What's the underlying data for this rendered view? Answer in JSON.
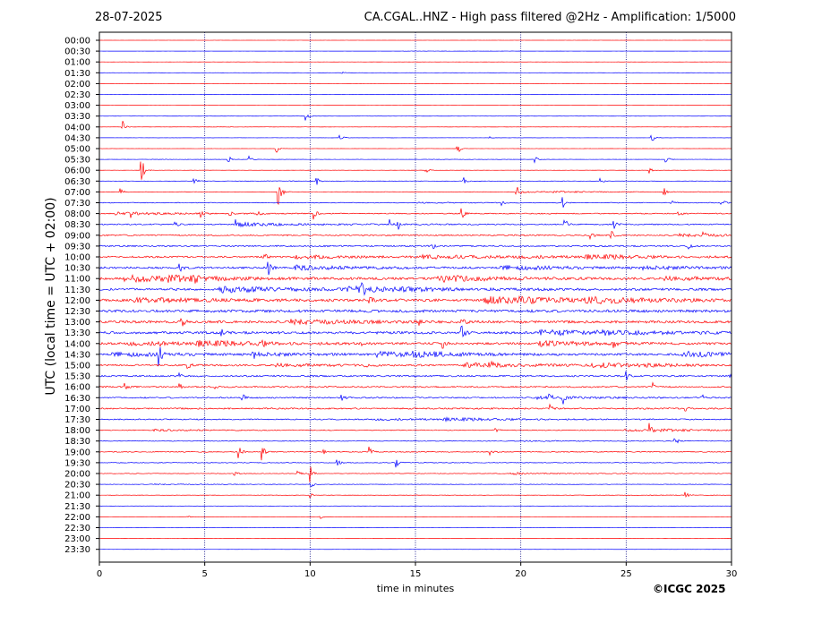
{
  "header": {
    "date": "28-07-2025",
    "title": "CA.CGAL..HNZ - High pass filtered @2Hz - Amplification: 1/5000"
  },
  "footer": {
    "copyright": "©ICGC 2025"
  },
  "colors": {
    "trace_a": "#ff0000",
    "trace_b": "#0000ff",
    "axis": "#000000",
    "grid": "#000080"
  },
  "chart_data": {
    "type": "line",
    "title": "CA.CGAL..HNZ - High pass filtered @2Hz - Amplification: 1/5000",
    "xlabel": "time in minutes",
    "ylabel": "UTC (local time = UTC + 02:00)",
    "xlim": [
      0,
      30
    ],
    "x_ticks": [
      0,
      5,
      10,
      15,
      20,
      25,
      30
    ],
    "y_tick_labels": [
      "00:00",
      "00:30",
      "01:00",
      "01:30",
      "02:00",
      "02:30",
      "03:00",
      "03:30",
      "04:00",
      "04:30",
      "05:00",
      "05:30",
      "06:00",
      "06:30",
      "07:00",
      "07:30",
      "08:00",
      "08:30",
      "09:00",
      "09:30",
      "10:00",
      "10:30",
      "11:00",
      "11:30",
      "12:00",
      "12:30",
      "13:00",
      "13:30",
      "14:00",
      "14:30",
      "15:00",
      "15:30",
      "16:00",
      "16:30",
      "17:00",
      "17:30",
      "18:00",
      "18:30",
      "19:00",
      "19:30",
      "20:00",
      "20:30",
      "21:00",
      "21:30",
      "22:00",
      "22:30",
      "23:00",
      "23:30"
    ],
    "grid": "vertical dotted at 5-minute intervals",
    "trace_colors_alternate": [
      "red",
      "blue"
    ],
    "noise_level": [
      0.05,
      0.05,
      0.05,
      0.06,
      0.05,
      0.06,
      0.05,
      0.06,
      0.06,
      0.07,
      0.08,
      0.09,
      0.1,
      0.14,
      0.22,
      0.3,
      0.45,
      0.55,
      0.6,
      0.65,
      0.75,
      0.85,
      1.0,
      1.05,
      1.15,
      1.2,
      1.1,
      1.1,
      0.95,
      0.85,
      0.8,
      0.7,
      0.65,
      0.6,
      0.65,
      0.5,
      0.35,
      0.3,
      0.4,
      0.3,
      0.25,
      0.2,
      0.15,
      0.1,
      0.08,
      0.07,
      0.06,
      0.05
    ],
    "events": [
      {
        "row": 3,
        "minute": 11.5,
        "amp": 2
      },
      {
        "row": 7,
        "minute": 9.8,
        "amp": 5
      },
      {
        "row": 8,
        "minute": 1.1,
        "amp": 7
      },
      {
        "row": 9,
        "minute": 11.4,
        "amp": 6
      },
      {
        "row": 9,
        "minute": 18.5,
        "amp": 2
      },
      {
        "row": 9,
        "minute": 26.2,
        "amp": 6
      },
      {
        "row": 10,
        "minute": 8.4,
        "amp": 5
      },
      {
        "row": 10,
        "minute": 17.0,
        "amp": 7
      },
      {
        "row": 11,
        "minute": 6.1,
        "amp": 6
      },
      {
        "row": 11,
        "minute": 7.1,
        "amp": 4
      },
      {
        "row": 11,
        "minute": 20.7,
        "amp": 4
      },
      {
        "row": 11,
        "minute": 26.9,
        "amp": 6
      },
      {
        "row": 12,
        "minute": 2.0,
        "amp": 18
      },
      {
        "row": 12,
        "minute": 15.5,
        "amp": 5
      },
      {
        "row": 12,
        "minute": 26.1,
        "amp": 4
      },
      {
        "row": 13,
        "minute": 4.5,
        "amp": 7
      },
      {
        "row": 13,
        "minute": 10.3,
        "amp": 5
      },
      {
        "row": 13,
        "minute": 17.3,
        "amp": 5
      },
      {
        "row": 13,
        "minute": 23.8,
        "amp": 4
      },
      {
        "row": 14,
        "minute": 1.0,
        "amp": 5
      },
      {
        "row": 14,
        "minute": 8.5,
        "amp": 20
      },
      {
        "row": 14,
        "minute": 19.8,
        "amp": 7
      },
      {
        "row": 14,
        "minute": 26.8,
        "amp": 5
      },
      {
        "row": 15,
        "minute": 19.1,
        "amp": 5
      },
      {
        "row": 15,
        "minute": 22.0,
        "amp": 6
      },
      {
        "row": 15,
        "minute": 27.1,
        "amp": 5
      },
      {
        "row": 15,
        "minute": 29.5,
        "amp": 8
      },
      {
        "row": 16,
        "minute": 1.5,
        "amp": 4
      },
      {
        "row": 16,
        "minute": 4.8,
        "amp": 4
      },
      {
        "row": 16,
        "minute": 6.2,
        "amp": 4
      },
      {
        "row": 16,
        "minute": 7.5,
        "amp": 5
      },
      {
        "row": 16,
        "minute": 10.2,
        "amp": 6
      },
      {
        "row": 16,
        "minute": 17.2,
        "amp": 7
      },
      {
        "row": 16,
        "minute": 27.5,
        "amp": 4
      },
      {
        "row": 17,
        "minute": 3.6,
        "amp": 4
      },
      {
        "row": 17,
        "minute": 6.5,
        "amp": 6
      },
      {
        "row": 17,
        "minute": 13.8,
        "amp": 5
      },
      {
        "row": 17,
        "minute": 14.2,
        "amp": 5
      },
      {
        "row": 17,
        "minute": 22.1,
        "amp": 6
      },
      {
        "row": 17,
        "minute": 24.4,
        "amp": 6
      },
      {
        "row": 18,
        "minute": 24.3,
        "amp": 6
      },
      {
        "row": 18,
        "minute": 23.3,
        "amp": 6
      },
      {
        "row": 18,
        "minute": 28.6,
        "amp": 5
      },
      {
        "row": 19,
        "minute": 15.8,
        "amp": 4
      },
      {
        "row": 19,
        "minute": 27.9,
        "amp": 5
      },
      {
        "row": 20,
        "minute": 7.8,
        "amp": 6
      },
      {
        "row": 21,
        "minute": 3.8,
        "amp": 6
      },
      {
        "row": 21,
        "minute": 8.0,
        "amp": 10
      },
      {
        "row": 22,
        "minute": 1.2,
        "amp": 4
      },
      {
        "row": 22,
        "minute": 4.5,
        "amp": 4
      },
      {
        "row": 23,
        "minute": 12.5,
        "amp": 5
      },
      {
        "row": 24,
        "minute": 12.8,
        "amp": 6
      },
      {
        "row": 26,
        "minute": 3.9,
        "amp": 6
      },
      {
        "row": 26,
        "minute": 15.2,
        "amp": 5
      },
      {
        "row": 26,
        "minute": 17.2,
        "amp": 7
      },
      {
        "row": 27,
        "minute": 5.8,
        "amp": 5
      },
      {
        "row": 27,
        "minute": 17.2,
        "amp": 9
      },
      {
        "row": 27,
        "minute": 24.8,
        "amp": 5
      },
      {
        "row": 28,
        "minute": 2.8,
        "amp": 6
      },
      {
        "row": 28,
        "minute": 7.7,
        "amp": 4
      },
      {
        "row": 28,
        "minute": 12.5,
        "amp": 4
      },
      {
        "row": 28,
        "minute": 16.3,
        "amp": 5
      },
      {
        "row": 28,
        "minute": 24.4,
        "amp": 5
      },
      {
        "row": 29,
        "minute": 2.8,
        "amp": 14
      },
      {
        "row": 29,
        "minute": 7.3,
        "amp": 4
      },
      {
        "row": 30,
        "minute": 4.2,
        "amp": 4
      },
      {
        "row": 30,
        "minute": 12.6,
        "amp": 5
      },
      {
        "row": 30,
        "minute": 18.5,
        "amp": 5
      },
      {
        "row": 31,
        "minute": 3.8,
        "amp": 4
      },
      {
        "row": 31,
        "minute": 25.0,
        "amp": 5
      },
      {
        "row": 32,
        "minute": 1.2,
        "amp": 4
      },
      {
        "row": 32,
        "minute": 3.8,
        "amp": 4
      },
      {
        "row": 32,
        "minute": 5.5,
        "amp": 4
      },
      {
        "row": 32,
        "minute": 26.3,
        "amp": 4
      },
      {
        "row": 33,
        "minute": 6.8,
        "amp": 4
      },
      {
        "row": 33,
        "minute": 11.5,
        "amp": 6
      },
      {
        "row": 33,
        "minute": 21.3,
        "amp": 7
      },
      {
        "row": 33,
        "minute": 22.0,
        "amp": 7
      },
      {
        "row": 33,
        "minute": 28.6,
        "amp": 4
      },
      {
        "row": 34,
        "minute": 21.4,
        "amp": 4
      },
      {
        "row": 34,
        "minute": 27.8,
        "amp": 5
      },
      {
        "row": 36,
        "minute": 26.1,
        "amp": 7
      },
      {
        "row": 36,
        "minute": 18.8,
        "amp": 3
      },
      {
        "row": 37,
        "minute": 27.3,
        "amp": 7
      },
      {
        "row": 38,
        "minute": 6.6,
        "amp": 9
      },
      {
        "row": 38,
        "minute": 7.7,
        "amp": 9
      },
      {
        "row": 38,
        "minute": 10.6,
        "amp": 5
      },
      {
        "row": 38,
        "minute": 12.8,
        "amp": 7
      },
      {
        "row": 38,
        "minute": 18.5,
        "amp": 5
      },
      {
        "row": 39,
        "minute": 11.3,
        "amp": 5
      },
      {
        "row": 39,
        "minute": 14.1,
        "amp": 5
      },
      {
        "row": 40,
        "minute": 6.4,
        "amp": 4
      },
      {
        "row": 40,
        "minute": 9.4,
        "amp": 6
      },
      {
        "row": 40,
        "minute": 10.0,
        "amp": 10
      },
      {
        "row": 40,
        "minute": 19.7,
        "amp": 5
      },
      {
        "row": 41,
        "minute": 10.0,
        "amp": 6
      },
      {
        "row": 42,
        "minute": 10.0,
        "amp": 4
      },
      {
        "row": 42,
        "minute": 27.8,
        "amp": 5
      },
      {
        "row": 44,
        "minute": 4.2,
        "amp": 2
      },
      {
        "row": 44,
        "minute": 10.5,
        "amp": 3
      }
    ]
  }
}
